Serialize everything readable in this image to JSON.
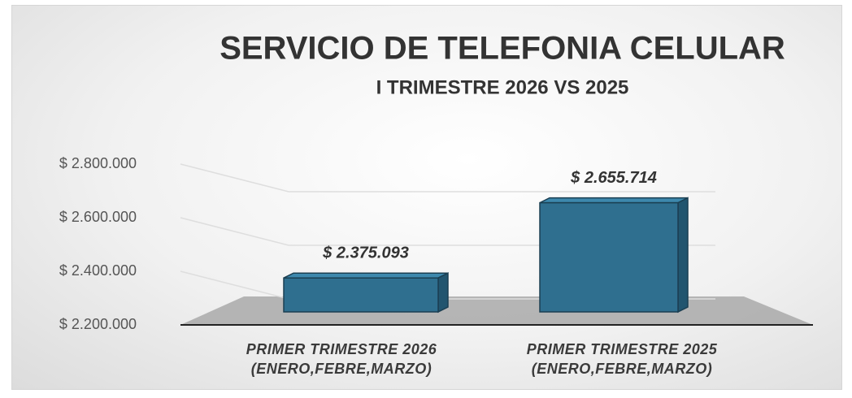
{
  "chart_data": {
    "type": "bar3d",
    "title": "SERVICIO DE TELEFONIA CELULAR",
    "subtitle": "I TRIMESTRE 2026 VS 2025",
    "categories": [
      "PRIMER TRIMESTRE  2026\n(ENERO,FEBRE,MARZO)",
      "PRIMER TRIMESTRE  2025\n(ENERO,FEBRE,MARZO)"
    ],
    "values": [
      2375093,
      2655714
    ],
    "value_labels": [
      "$ 2.375.093",
      "$ 2.655.714"
    ],
    "color": "#2f6f8f",
    "ylim": [
      2200000,
      2800000
    ],
    "yticks": [
      {
        "value": 2200000,
        "label": "$ 2.200.000"
      },
      {
        "value": 2400000,
        "label": "$ 2.400.000"
      },
      {
        "value": 2600000,
        "label": "$ 2.600.000"
      },
      {
        "value": 2800000,
        "label": "$ 2.800.000"
      }
    ],
    "grid": true
  }
}
